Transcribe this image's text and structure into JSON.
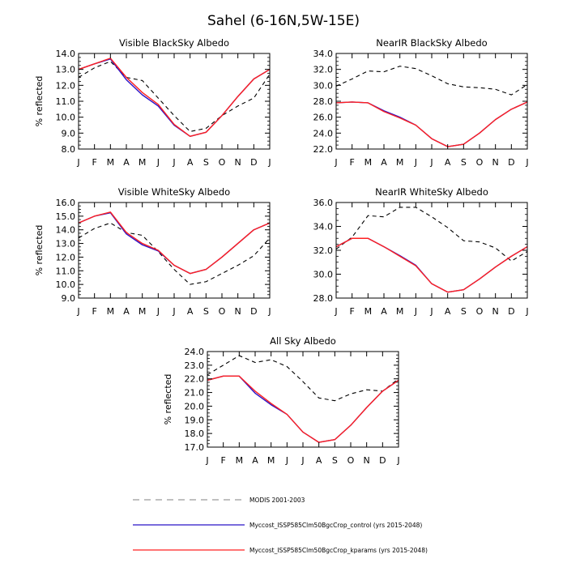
{
  "title": "Sahel (6-16N,5W-15E)",
  "colors": {
    "modis": "#000000",
    "control": "#2a14c8",
    "kparams": "#ff2020",
    "legend_modis": "#9a9a9a",
    "legend_control": "#2a14c8",
    "legend_kparams": "#ff2020"
  },
  "legend": {
    "modis": "MODIS 2001-2003",
    "control": "Myccost_ISSP585Clm50BgcCrop_control (yrs 2015-2048)",
    "kparams": "Myccost_ISSP585Clm50BgcCrop_kparams (yrs 2015-2048)"
  },
  "chart_data": [
    {
      "type": "line",
      "title": "Visible BlackSky Albedo",
      "ylabel": "% reflected",
      "xlabel": "",
      "categories": [
        "J",
        "F",
        "M",
        "A",
        "M",
        "J",
        "J",
        "A",
        "S",
        "O",
        "N",
        "D",
        "J"
      ],
      "ylim": [
        8.0,
        14.0
      ],
      "yticks": [
        "8.0",
        "9.0",
        "10.0",
        "11.0",
        "12.0",
        "13.0",
        "14.0"
      ],
      "series": [
        {
          "name": "MODIS 2001-2003",
          "style": "dashed",
          "values": [
            12.5,
            13.1,
            13.5,
            12.5,
            12.3,
            11.2,
            10.1,
            9.1,
            9.3,
            10.1,
            10.7,
            11.2,
            12.7
          ]
        },
        {
          "name": "Myccost_ISSP585Clm50BgcCrop_control (yrs 2015-2048)",
          "style": "solid",
          "values": [
            13.0,
            13.35,
            13.7,
            12.5,
            11.55,
            10.8,
            9.55,
            8.8,
            9.05,
            10.1,
            11.3,
            12.4,
            13.0
          ]
        },
        {
          "name": "Myccost_ISSP585Clm50BgcCrop_kparams (yrs 2015-2048)",
          "style": "solid",
          "values": [
            13.0,
            13.35,
            13.65,
            12.35,
            11.4,
            10.7,
            9.5,
            8.8,
            9.05,
            10.1,
            11.3,
            12.4,
            13.0
          ]
        }
      ]
    },
    {
      "type": "line",
      "title": "NearIR BlackSky Albedo",
      "ylabel": "",
      "xlabel": "",
      "categories": [
        "J",
        "F",
        "M",
        "A",
        "M",
        "J",
        "J",
        "A",
        "S",
        "O",
        "N",
        "D",
        "J"
      ],
      "ylim": [
        22.0,
        34.0
      ],
      "yticks": [
        "22.0",
        "24.0",
        "26.0",
        "28.0",
        "30.0",
        "32.0",
        "34.0"
      ],
      "series": [
        {
          "name": "MODIS 2001-2003",
          "style": "dashed",
          "values": [
            29.9,
            30.8,
            31.8,
            31.7,
            32.4,
            32.1,
            31.2,
            30.2,
            29.8,
            29.7,
            29.5,
            28.8,
            30.1
          ]
        },
        {
          "name": "Myccost_ISSP585Clm50BgcCrop_control (yrs 2015-2048)",
          "style": "solid",
          "values": [
            27.8,
            27.9,
            27.8,
            26.7,
            25.9,
            25.0,
            23.3,
            22.3,
            22.6,
            24.0,
            25.7,
            27.0,
            27.9
          ]
        },
        {
          "name": "Myccost_ISSP585Clm50BgcCrop_kparams (yrs 2015-2048)",
          "style": "solid",
          "values": [
            27.8,
            27.9,
            27.8,
            26.8,
            26.0,
            25.0,
            23.3,
            22.3,
            22.6,
            24.0,
            25.7,
            27.0,
            27.9
          ]
        }
      ]
    },
    {
      "type": "line",
      "title": "Visible WhiteSky Albedo",
      "ylabel": "% reflected",
      "xlabel": "",
      "categories": [
        "J",
        "F",
        "M",
        "A",
        "M",
        "J",
        "J",
        "A",
        "S",
        "O",
        "N",
        "D",
        "J"
      ],
      "ylim": [
        9.0,
        16.0
      ],
      "yticks": [
        "9.0",
        "10.0",
        "11.0",
        "12.0",
        "13.0",
        "14.0",
        "15.0",
        "16.0"
      ],
      "series": [
        {
          "name": "MODIS 2001-2003",
          "style": "dashed",
          "values": [
            13.4,
            14.1,
            14.5,
            13.8,
            13.6,
            12.4,
            11.1,
            10.0,
            10.2,
            10.8,
            11.4,
            12.1,
            13.4
          ]
        },
        {
          "name": "Myccost_ISSP585Clm50BgcCrop_control (yrs 2015-2048)",
          "style": "solid",
          "values": [
            14.5,
            15.0,
            15.3,
            13.8,
            13.0,
            12.5,
            11.4,
            10.8,
            11.1,
            12.0,
            13.0,
            14.0,
            14.5
          ]
        },
        {
          "name": "Myccost_ISSP585Clm50BgcCrop_kparams (yrs 2015-2048)",
          "style": "solid",
          "values": [
            14.5,
            15.0,
            15.25,
            13.7,
            12.9,
            12.45,
            11.4,
            10.8,
            11.1,
            12.0,
            13.0,
            14.0,
            14.5
          ]
        }
      ]
    },
    {
      "type": "line",
      "title": "NearIR WhiteSky Albedo",
      "ylabel": "",
      "xlabel": "",
      "categories": [
        "J",
        "F",
        "M",
        "A",
        "M",
        "J",
        "J",
        "A",
        "S",
        "O",
        "N",
        "D",
        "J"
      ],
      "ylim": [
        28.0,
        36.0
      ],
      "yticks": [
        "28.0",
        "30.0",
        "32.0",
        "34.0",
        "36.0"
      ],
      "series": [
        {
          "name": "MODIS 2001-2003",
          "style": "dashed",
          "values": [
            32.1,
            33.1,
            34.9,
            34.8,
            35.6,
            35.6,
            34.8,
            33.9,
            32.8,
            32.7,
            32.2,
            31.1,
            31.9
          ]
        },
        {
          "name": "Myccost_ISSP585Clm50BgcCrop_control (yrs 2015-2048)",
          "style": "solid",
          "values": [
            32.3,
            33.0,
            33.0,
            32.3,
            31.5,
            30.7,
            29.2,
            28.5,
            28.7,
            29.6,
            30.6,
            31.5,
            32.3
          ]
        },
        {
          "name": "Myccost_ISSP585Clm50BgcCrop_kparams (yrs 2015-2048)",
          "style": "solid",
          "values": [
            32.3,
            33.0,
            33.0,
            32.3,
            31.55,
            30.75,
            29.2,
            28.5,
            28.7,
            29.6,
            30.6,
            31.5,
            32.3
          ]
        }
      ]
    },
    {
      "type": "line",
      "title": "All Sky Albedo",
      "ylabel": "% reflected",
      "xlabel": "",
      "categories": [
        "J",
        "F",
        "M",
        "A",
        "M",
        "J",
        "J",
        "A",
        "S",
        "O",
        "N",
        "D",
        "J"
      ],
      "ylim": [
        17.0,
        24.0
      ],
      "yticks": [
        "17.0",
        "18.0",
        "19.0",
        "20.0",
        "21.0",
        "22.0",
        "23.0",
        "24.0"
      ],
      "series": [
        {
          "name": "MODIS 2001-2003",
          "style": "dashed",
          "values": [
            22.3,
            23.0,
            23.7,
            23.2,
            23.4,
            22.9,
            21.8,
            20.6,
            20.4,
            20.9,
            21.2,
            21.1,
            22.0
          ]
        },
        {
          "name": "Myccost_ISSP585Clm50BgcCrop_control (yrs 2015-2048)",
          "style": "solid",
          "values": [
            21.9,
            22.2,
            22.2,
            21.1,
            20.2,
            19.4,
            18.1,
            17.35,
            17.55,
            18.6,
            19.9,
            21.1,
            21.9
          ]
        },
        {
          "name": "Myccost_ISSP585Clm50BgcCrop_kparams (yrs 2015-2048)",
          "style": "solid",
          "values": [
            21.9,
            22.2,
            22.2,
            20.95,
            20.1,
            19.4,
            18.1,
            17.35,
            17.55,
            18.6,
            19.9,
            21.1,
            21.9
          ]
        }
      ]
    }
  ]
}
